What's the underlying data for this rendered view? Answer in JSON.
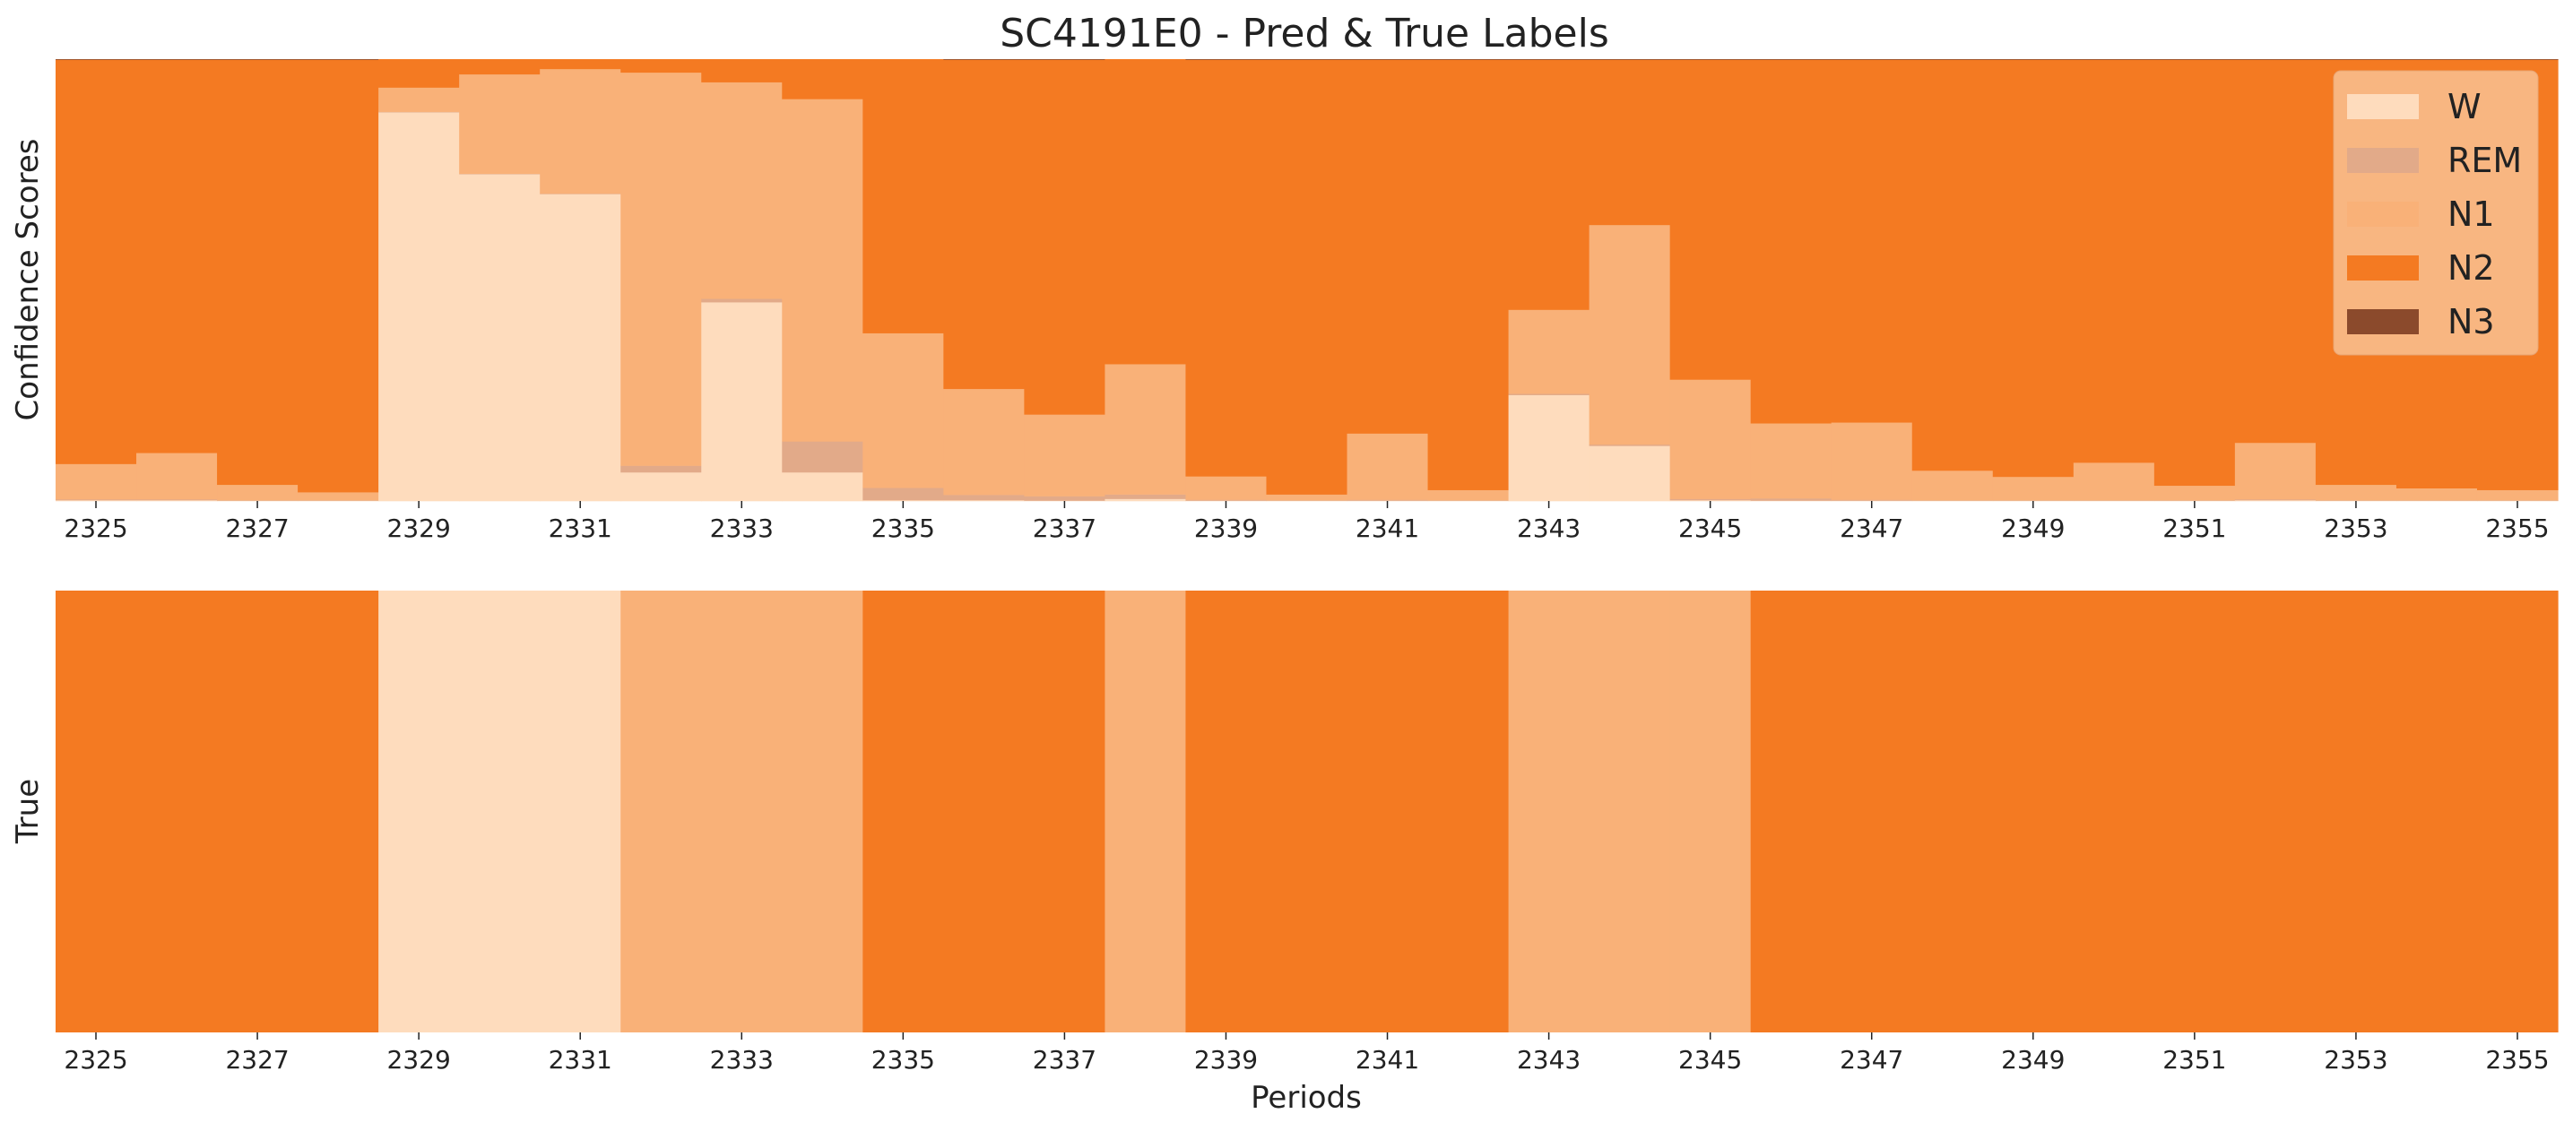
{
  "chart_data": {
    "type": "area",
    "title": "SC4191E0 - Pred & True Labels",
    "classes": [
      "W",
      "REM",
      "N1",
      "N2",
      "N3"
    ],
    "colors": {
      "W": "#fedcbd",
      "REM": "#e2aa89",
      "N1": "#f9b178",
      "N2": "#f47a22",
      "N3": "#8b4a2c",
      "legend_bg": "#f8bc8c"
    },
    "x": [
      2325,
      2326,
      2327,
      2328,
      2329,
      2330,
      2331,
      2332,
      2333,
      2334,
      2335,
      2336,
      2337,
      2338,
      2339,
      2340,
      2341,
      2342,
      2343,
      2344,
      2345,
      2346,
      2347,
      2348,
      2349,
      2350,
      2351,
      2352,
      2353,
      2354,
      2355
    ],
    "x_ticks": [
      2325,
      2327,
      2329,
      2331,
      2333,
      2335,
      2337,
      2339,
      2341,
      2343,
      2345,
      2347,
      2349,
      2351,
      2353,
      2355
    ],
    "x_tick_labels": [
      "2325",
      "2327",
      "2329",
      "2331",
      "2333",
      "2335",
      "2337",
      "2339",
      "2341",
      "2343",
      "2345",
      "2347",
      "2349",
      "2351",
      "2353",
      "2355"
    ],
    "xlim": [
      2324.5,
      2355.5
    ],
    "ylim": [
      0,
      1
    ],
    "xlabel": "Periods",
    "top": {
      "ylabel": "Confidence Scores",
      "series": [
        {
          "name": "W",
          "values": [
            0.002,
            0.002,
            0.001,
            0.001,
            0.88,
            0.74,
            0.695,
            0.065,
            0.45,
            0.065,
            0.002,
            0.002,
            0.001,
            0.005,
            0.001,
            0.001,
            0.001,
            0.001,
            0.24,
            0.125,
            0.002,
            0.001,
            0.001,
            0.001,
            0.001,
            0.001,
            0.001,
            0.002,
            0.001,
            0.001,
            0.001
          ]
        },
        {
          "name": "REM",
          "values": [
            0.002,
            0.002,
            0.001,
            0.001,
            0.001,
            0.001,
            0.001,
            0.015,
            0.008,
            0.07,
            0.028,
            0.012,
            0.01,
            0.01,
            0.002,
            0.001,
            0.002,
            0.001,
            0.003,
            0.003,
            0.003,
            0.005,
            0.002,
            0.001,
            0.001,
            0.001,
            0.001,
            0.002,
            0.001,
            0.001,
            0.001
          ]
        },
        {
          "name": "N1",
          "values": [
            0.08,
            0.105,
            0.035,
            0.018,
            0.055,
            0.225,
            0.282,
            0.89,
            0.49,
            0.775,
            0.35,
            0.24,
            0.185,
            0.295,
            0.053,
            0.013,
            0.15,
            0.023,
            0.19,
            0.497,
            0.27,
            0.17,
            0.175,
            0.067,
            0.053,
            0.085,
            0.033,
            0.128,
            0.035,
            0.027,
            0.023
          ]
        },
        {
          "name": "N2",
          "values": [
            0.915,
            0.89,
            0.962,
            0.979,
            0.064,
            0.034,
            0.022,
            0.03,
            0.052,
            0.09,
            0.62,
            0.745,
            0.803,
            0.69,
            0.943,
            0.984,
            0.846,
            0.974,
            0.566,
            0.374,
            0.724,
            0.823,
            0.821,
            0.93,
            0.944,
            0.912,
            0.964,
            0.867,
            0.962,
            0.97,
            0.974
          ]
        },
        {
          "name": "N3",
          "values": [
            0.001,
            0.001,
            0.001,
            0.001,
            0.0,
            0.0,
            0.0,
            0.0,
            0.0,
            0.0,
            0.0,
            0.001,
            0.001,
            0.0,
            0.001,
            0.001,
            0.001,
            0.001,
            0.001,
            0.001,
            0.001,
            0.001,
            0.001,
            0.001,
            0.001,
            0.001,
            0.001,
            0.001,
            0.001,
            0.001,
            0.001
          ]
        }
      ]
    },
    "bottom": {
      "ylabel": "True",
      "labels": [
        "N2",
        "N2",
        "N2",
        "N2",
        "W",
        "W",
        "W",
        "N1",
        "N1",
        "N1",
        "N2",
        "N2",
        "N2",
        "N1",
        "N2",
        "N2",
        "N2",
        "N2",
        "N1",
        "N1",
        "N1",
        "N2",
        "N2",
        "N2",
        "N2",
        "N2",
        "N2",
        "N2",
        "N2",
        "N2",
        "N2"
      ]
    },
    "legend": {
      "placement": "top-right",
      "entries": [
        "W",
        "REM",
        "N1",
        "N2",
        "N3"
      ]
    },
    "grid": false
  }
}
